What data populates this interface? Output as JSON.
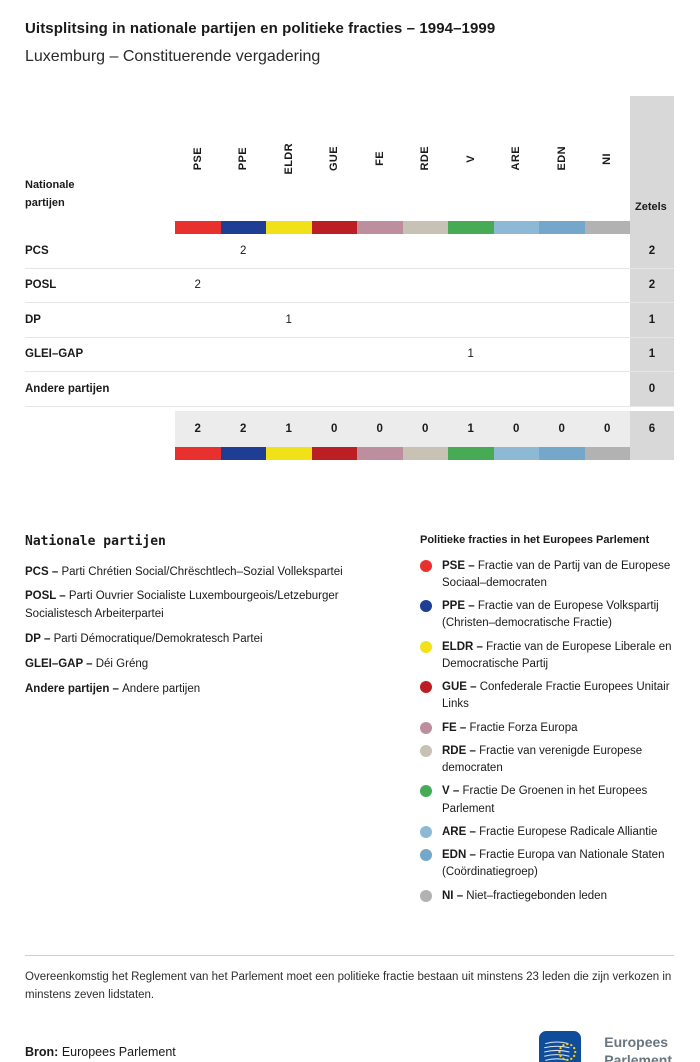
{
  "header": {
    "title": "Uitsplitsing in nationale partijen en politieke fracties – 1994–1999",
    "subtitle": "Luxemburg – Constituerende vergadering"
  },
  "table": {
    "row_header_label": "Nationale partijen",
    "seats_header_label": "Zetels"
  },
  "groups": [
    {
      "id": "PSE",
      "color": "#e8312f",
      "description": "Fractie van de Partij van de Europese Sociaal–democraten"
    },
    {
      "id": "PPE",
      "color": "#1d3e94",
      "description": "Fractie van de Europese Volkspartij (Christen–democratische Fractie)"
    },
    {
      "id": "ELDR",
      "color": "#f1e118",
      "description": "Fractie van de Europese Liberale en Democratische Partij"
    },
    {
      "id": "GUE",
      "color": "#bb1f24",
      "description": "Confederale Fractie Europees Unitair Links"
    },
    {
      "id": "FE",
      "color": "#bd8e9d",
      "description": "Fractie Forza Europa"
    },
    {
      "id": "RDE",
      "color": "#c7c2b3",
      "description": "Fractie van verenigde Europese democraten"
    },
    {
      "id": "V",
      "color": "#46ab54",
      "description": "Fractie De Groenen in het Europees Parlement"
    },
    {
      "id": "ARE",
      "color": "#8db9d4",
      "description": "Fractie Europese Radicale Alliantie"
    },
    {
      "id": "EDN",
      "color": "#74a7c9",
      "description": "Fractie Europa van Nationale Staten (Coördinatiegroep)"
    },
    {
      "id": "NI",
      "color": "#b2b2b2",
      "description": "Niet–fractiegebonden leden"
    }
  ],
  "chart_data": {
    "type": "table",
    "title": "Uitsplitsing in nationale partijen en politieke fracties – 1994–1999",
    "subtitle": "Luxemburg – Constituerende vergadering",
    "columns": [
      "PSE",
      "PPE",
      "ELDR",
      "GUE",
      "FE",
      "RDE",
      "V",
      "ARE",
      "EDN",
      "NI"
    ],
    "seats_column": "Zetels",
    "rows": [
      {
        "party": "PCS",
        "cells": [
          "",
          "2",
          "",
          "",
          "",
          "",
          "",
          "",
          "",
          ""
        ],
        "seats": "2"
      },
      {
        "party": "POSL",
        "cells": [
          "2",
          "",
          "",
          "",
          "",
          "",
          "",
          "",
          "",
          ""
        ],
        "seats": "2"
      },
      {
        "party": "DP",
        "cells": [
          "",
          "",
          "1",
          "",
          "",
          "",
          "",
          "",
          "",
          ""
        ],
        "seats": "1"
      },
      {
        "party": "GLEI–GAP",
        "cells": [
          "",
          "",
          "",
          "",
          "",
          "",
          "1",
          "",
          "",
          ""
        ],
        "seats": "1"
      },
      {
        "party": "Andere partijen",
        "cells": [
          "",
          "",
          "",
          "",
          "",
          "",
          "",
          "",
          "",
          ""
        ],
        "seats": "0"
      }
    ],
    "totals": {
      "cells": [
        "2",
        "2",
        "1",
        "0",
        "0",
        "0",
        "1",
        "0",
        "0",
        "0"
      ],
      "seats": "6"
    }
  },
  "legend_parties": {
    "title": "Nationale partijen",
    "items": [
      {
        "abbr": "PCS",
        "name": "Parti Chrétien Social/Chrëschtlech–Sozial Vollekspartei"
      },
      {
        "abbr": "POSL",
        "name": "Parti Ouvrier Socialiste Luxembourgeois/Letzeburger Socialistesch Arbeiterpartei"
      },
      {
        "abbr": "DP",
        "name": "Parti Démocratique/Demokratesch Partei"
      },
      {
        "abbr": "GLEI–GAP",
        "name": "Déi Gréng"
      },
      {
        "abbr": "Andere partijen",
        "name": "Andere partijen"
      }
    ]
  },
  "legend_groups": {
    "title": "Politieke fracties in het Europees Parlement"
  },
  "footnote": "Overeenkomstig het Reglement van het Parlement moet een politieke fractie bestaan uit minstens 23 leden die zijn verkozen in minstens zeven lidstaten.",
  "source": {
    "label": "Bron:",
    "value": "Europees Parlement"
  },
  "logo": {
    "line1": "Europees",
    "line2": "Parlement"
  }
}
